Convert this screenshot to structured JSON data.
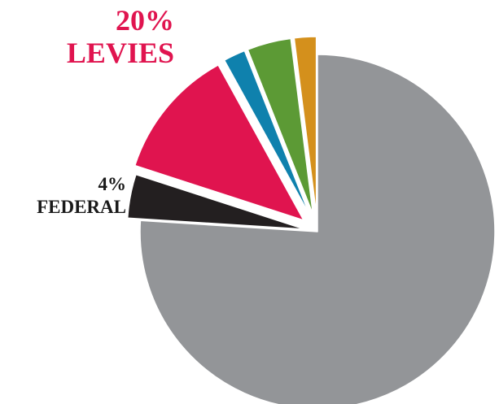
{
  "chart_data": {
    "type": "pie",
    "slices": [
      {
        "value": 76,
        "color": "#939598"
      },
      {
        "value": 4,
        "color": "#231f20"
      },
      {
        "value": 12,
        "color": "#e0144f"
      },
      {
        "value": 2,
        "color": "#0f81ad"
      },
      {
        "value": 4,
        "color": "#5c9a35"
      },
      {
        "value": 2,
        "color": "#d4901c"
      }
    ],
    "callouts": {
      "levies": {
        "percent": "20%",
        "label": "LEVIES",
        "color": "#e0144f"
      },
      "federal": {
        "percent": "4%",
        "label": "FEDERAL",
        "color": "#1a1a1a"
      }
    }
  }
}
